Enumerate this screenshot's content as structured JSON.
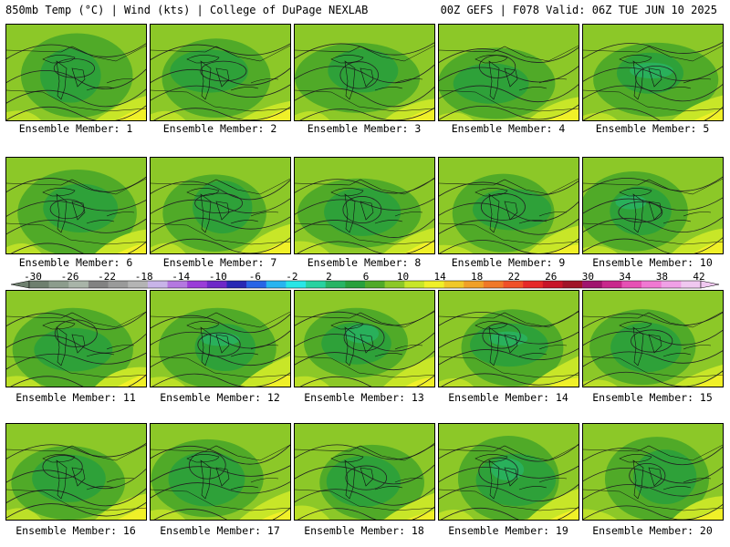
{
  "header": {
    "left": "850mb Temp (°C) | Wind (kts) | College of DuPage NEXLAB",
    "right": "00Z GEFS | F078 Valid: 06Z TUE JUN 10 2025"
  },
  "panels": [
    {
      "label": "Ensemble Member: 1"
    },
    {
      "label": "Ensemble Member: 2"
    },
    {
      "label": "Ensemble Member: 3"
    },
    {
      "label": "Ensemble Member: 4"
    },
    {
      "label": "Ensemble Member: 5"
    },
    {
      "label": "Ensemble Member: 6"
    },
    {
      "label": "Ensemble Member: 7"
    },
    {
      "label": "Ensemble Member: 8"
    },
    {
      "label": "Ensemble Member: 9"
    },
    {
      "label": "Ensemble Member: 10"
    },
    {
      "label": "Ensemble Member: 11"
    },
    {
      "label": "Ensemble Member: 12"
    },
    {
      "label": "Ensemble Member: 13"
    },
    {
      "label": "Ensemble Member: 14"
    },
    {
      "label": "Ensemble Member: 15"
    },
    {
      "label": "Ensemble Member: 16"
    },
    {
      "label": "Ensemble Member: 17"
    },
    {
      "label": "Ensemble Member: 18"
    },
    {
      "label": "Ensemble Member: 19"
    },
    {
      "label": "Ensemble Member: 20"
    }
  ],
  "colorbar": {
    "labels": [
      "-30",
      "-26",
      "-22",
      "-18",
      "-14",
      "-10",
      "-6",
      "-2",
      "2",
      "6",
      "10",
      "14",
      "18",
      "22",
      "26",
      "30",
      "34",
      "38",
      "42"
    ],
    "colors": [
      "#6e7f6e",
      "#8c9c8c",
      "#a8b4a8",
      "#828282",
      "#9a9a9a",
      "#b4b4b4",
      "#c8b4e8",
      "#b478e0",
      "#9a3cd8",
      "#6e28c8",
      "#2828b4",
      "#2864e6",
      "#28b4f0",
      "#28e6e6",
      "#28d2a0",
      "#28b464",
      "#28a03c",
      "#50aa28",
      "#8cc828",
      "#c8e628",
      "#f0f028",
      "#f0c828",
      "#f0a028",
      "#f07828",
      "#f05028",
      "#e62828",
      "#c81428",
      "#a01428",
      "#a0146e",
      "#c8288c",
      "#e650b4",
      "#f078d2",
      "#f0a0e6",
      "#f0c8f0"
    ]
  }
}
